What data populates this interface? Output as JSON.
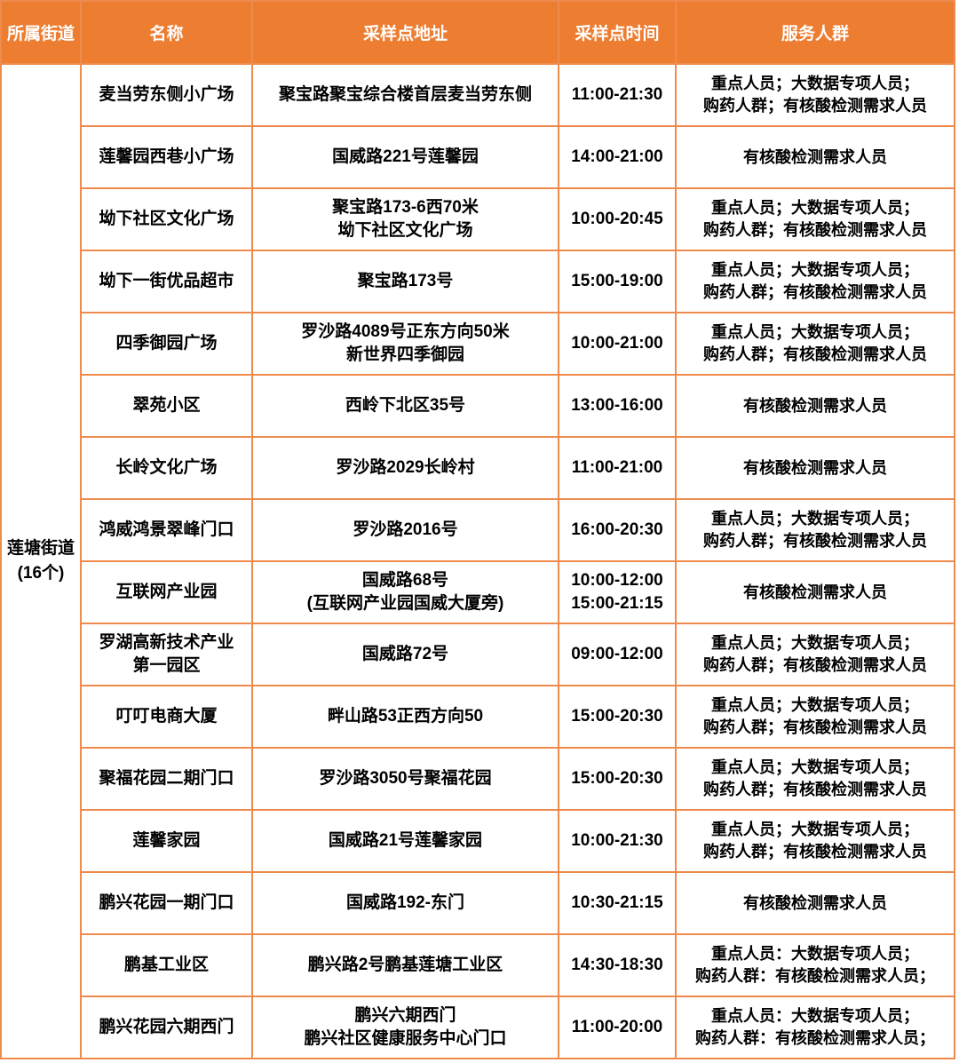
{
  "colors": {
    "header_bg": "#ED7D31",
    "grid_border": "#EE8B4D",
    "header_text": "#FFFFFF",
    "body_text": "#000000"
  },
  "table": {
    "columns": [
      "所属街道",
      "名称",
      "采样点地址",
      "采样点时间",
      "服务人群"
    ],
    "street_group": {
      "name": "莲塘街道",
      "count": "(16个)"
    },
    "rows": [
      {
        "name": [
          "麦当劳东侧小广场"
        ],
        "address": [
          "聚宝路聚宝综合楼首层麦当劳东侧"
        ],
        "time": [
          "11:00-21:30"
        ],
        "service": [
          "重点人员；大数据专项人员；",
          "购药人群；有核酸检测需求人员"
        ]
      },
      {
        "name": [
          "莲馨园西巷小广场"
        ],
        "address": [
          "国威路221号莲馨园"
        ],
        "time": [
          "14:00-21:00"
        ],
        "service": [
          "有核酸检测需求人员"
        ]
      },
      {
        "name": [
          "坳下社区文化广场"
        ],
        "address": [
          "聚宝路173-6西70米",
          "坳下社区文化广场"
        ],
        "time": [
          "10:00-20:45"
        ],
        "service": [
          "重点人员；大数据专项人员；",
          "购药人群；有核酸检测需求人员"
        ]
      },
      {
        "name": [
          "坳下一街优品超市"
        ],
        "address": [
          "聚宝路173号"
        ],
        "time": [
          "15:00-19:00"
        ],
        "service": [
          "重点人员；大数据专项人员；",
          "购药人群；有核酸检测需求人员"
        ]
      },
      {
        "name": [
          "四季御园广场"
        ],
        "address": [
          "罗沙路4089号正东方向50米",
          "新世界四季御园"
        ],
        "time": [
          "10:00-21:00"
        ],
        "service": [
          "重点人员；大数据专项人员；",
          "购药人群；有核酸检测需求人员"
        ]
      },
      {
        "name": [
          "翠苑小区"
        ],
        "address": [
          "西岭下北区35号"
        ],
        "time": [
          "13:00-16:00"
        ],
        "service": [
          "有核酸检测需求人员"
        ]
      },
      {
        "name": [
          "长岭文化广场"
        ],
        "address": [
          "罗沙路2029长岭村"
        ],
        "time": [
          "11:00-21:00"
        ],
        "service": [
          "有核酸检测需求人员"
        ]
      },
      {
        "name": [
          "鸿威鸿景翠峰门口"
        ],
        "address": [
          "罗沙路2016号"
        ],
        "time": [
          "16:00-20:30"
        ],
        "service": [
          "重点人员；大数据专项人员；",
          "购药人群；有核酸检测需求人员"
        ]
      },
      {
        "name": [
          "互联网产业园"
        ],
        "address": [
          "国威路68号",
          "(互联网产业园国威大厦旁)"
        ],
        "time": [
          "10:00-12:00",
          "15:00-21:15"
        ],
        "service": [
          "有核酸检测需求人员"
        ]
      },
      {
        "name": [
          "罗湖高新技术产业",
          "第一园区"
        ],
        "address": [
          "国威路72号"
        ],
        "time": [
          "09:00-12:00"
        ],
        "service": [
          "重点人员；大数据专项人员；",
          "购药人群；有核酸检测需求人员"
        ]
      },
      {
        "name": [
          "叮叮电商大厦"
        ],
        "address": [
          "畔山路53正西方向50"
        ],
        "time": [
          "15:00-20:30"
        ],
        "service": [
          "重点人员；大数据专项人员；",
          "购药人群；有核酸检测需求人员"
        ]
      },
      {
        "name": [
          "聚福花园二期门口"
        ],
        "address": [
          "罗沙路3050号聚福花园"
        ],
        "time": [
          "15:00-20:30"
        ],
        "service": [
          "重点人员；大数据专项人员；",
          "购药人群；有核酸检测需求人员"
        ]
      },
      {
        "name": [
          "莲馨家园"
        ],
        "address": [
          "国威路21号莲馨家园"
        ],
        "time": [
          "10:00-21:30"
        ],
        "service": [
          "重点人员；大数据专项人员；",
          "购药人群；有核酸检测需求人员"
        ]
      },
      {
        "name": [
          "鹏兴花园一期门口"
        ],
        "address": [
          "国威路192-东门"
        ],
        "time": [
          "10:30-21:15"
        ],
        "service": [
          "有核酸检测需求人员"
        ]
      },
      {
        "name": [
          "鹏基工业区"
        ],
        "address": [
          "鹏兴路2号鹏基莲塘工业区"
        ],
        "time": [
          "14:30-18:30"
        ],
        "service": [
          "重点人员：大数据专项人员；",
          "购药人群：有核酸检测需求人员；"
        ]
      },
      {
        "name": [
          "鹏兴花园六期西门"
        ],
        "address": [
          "鹏兴六期西门",
          "鹏兴社区健康服务中心门口"
        ],
        "time": [
          "11:00-20:00"
        ],
        "service": [
          "重点人员：大数据专项人员；",
          "购药人群：有核酸检测需求人员；"
        ]
      }
    ]
  }
}
